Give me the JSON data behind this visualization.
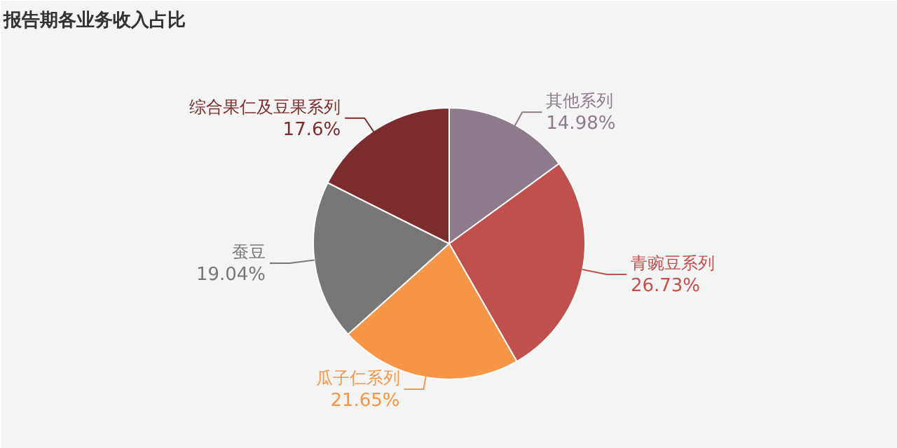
{
  "chart_data": {
    "type": "pie",
    "title": "报告期各业务收入占比",
    "categories": [
      "其他系列",
      "青豌豆系列",
      "瓜子仁系列",
      "蚕豆",
      "综合果仁及豆果系列"
    ],
    "values": [
      14.98,
      26.73,
      21.65,
      19.04,
      17.6
    ],
    "value_labels": [
      "14.98%",
      "26.73%",
      "21.65%",
      "19.04%",
      "17.6%"
    ],
    "colors": [
      "#8d7b8b",
      "#c0504d",
      "#f79646",
      "#777777",
      "#7b2c2c"
    ],
    "legend": false
  }
}
